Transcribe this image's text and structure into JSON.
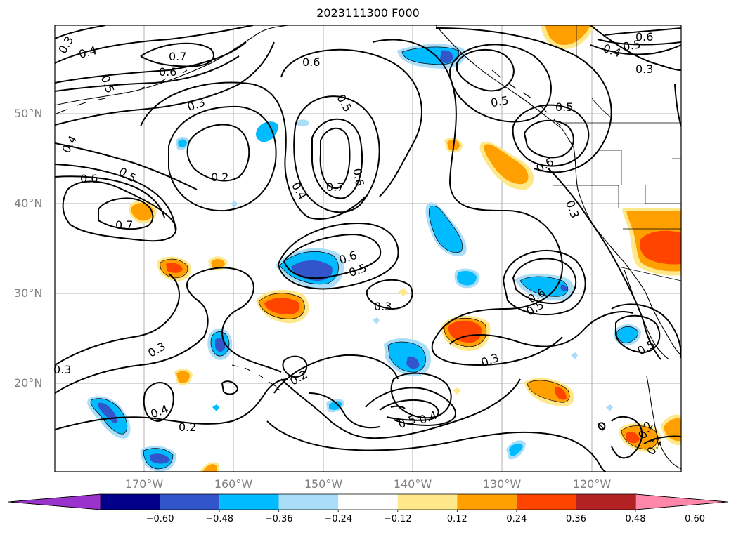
{
  "title": "2023111300 F000",
  "map": {
    "lat_labels": [
      "50°N",
      "40°N",
      "30°N",
      "20°N"
    ],
    "lon_labels": [
      "170°W",
      "160°W",
      "150°W",
      "140°W",
      "130°W",
      "120°W"
    ],
    "contour_labels": [
      {
        "text": "0.3"
      },
      {
        "text": "0.4"
      },
      {
        "text": "0.7"
      },
      {
        "text": "0.6"
      },
      {
        "text": "0.5"
      },
      {
        "text": "0.3"
      },
      {
        "text": "0.4"
      },
      {
        "text": "0.6"
      },
      {
        "text": "0.5"
      },
      {
        "text": "0.2"
      },
      {
        "text": "0.7"
      },
      {
        "text": "0.4"
      },
      {
        "text": "0.6"
      },
      {
        "text": "0.7"
      },
      {
        "text": "0.6"
      },
      {
        "text": "0.5"
      },
      {
        "text": "0.3"
      },
      {
        "text": "0.3"
      },
      {
        "text": "0.2"
      },
      {
        "text": "0.3"
      },
      {
        "text": "0.4"
      },
      {
        "text": "0.2"
      },
      {
        "text": "0.6"
      },
      {
        "text": "0.5"
      },
      {
        "text": "0.4"
      },
      {
        "text": "0.3"
      },
      {
        "text": "0.5"
      },
      {
        "text": "0.5"
      },
      {
        "text": "0.6"
      },
      {
        "text": "0.3"
      },
      {
        "text": "0.6"
      },
      {
        "text": "0.5"
      },
      {
        "text": "0.5"
      },
      {
        "text": "0.2"
      },
      {
        "text": "0.2"
      }
    ]
  },
  "colorbar": {
    "ticks": [
      "−0.60",
      "−0.48",
      "−0.36",
      "−0.24",
      "−0.12",
      "0.12",
      "0.24",
      "0.36",
      "0.48",
      "0.60"
    ],
    "colors": [
      "#9933cc",
      "#00008b",
      "#3355cc",
      "#00bbff",
      "#aaddf7",
      "#ffffff",
      "#ffe88a",
      "#ff9f00",
      "#ff4400",
      "#b22222",
      "#ff88aa"
    ]
  }
}
